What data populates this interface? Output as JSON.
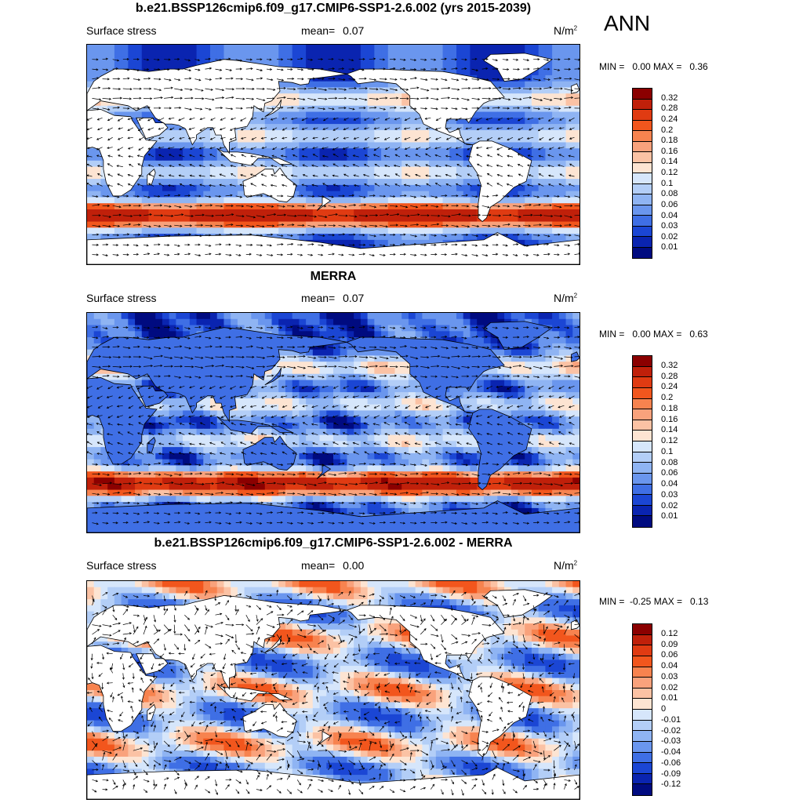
{
  "season": "ANN",
  "panels": [
    {
      "title": "b.e21.BSSP126cmip6.f09_g17.CMIP6-SSP1-2.6.002 (yrs 2015-2039)",
      "variable": "Surface stress",
      "mean_label": "mean=",
      "mean_value": "0.07",
      "units_base": "N/m",
      "units_exp": "2",
      "stats": "MIN =   0.00 MAX =   0.36",
      "colorbar_labels": [
        "0.32",
        "0.28",
        "0.24",
        "0.2",
        "0.18",
        "0.16",
        "0.14",
        "0.12",
        "0.1",
        "0.08",
        "0.06",
        "0.04",
        "0.03",
        "0.02",
        "0.01"
      ],
      "colorbar_colors": [
        "#8b0000",
        "#c0200a",
        "#e03b12",
        "#f2561d",
        "#f7834f",
        "#f9a27c",
        "#fbc2a4",
        "#fde4d2",
        "#d6e6fb",
        "#b3cef7",
        "#8fb4f3",
        "#6a96ee",
        "#3f6fe5",
        "#1b46d4",
        "#0a24b0",
        "#000b80"
      ],
      "field": "model"
    },
    {
      "title": "MERRA",
      "variable": "Surface stress",
      "mean_label": "mean=",
      "mean_value": "0.07",
      "units_base": "N/m",
      "units_exp": "2",
      "stats": "MIN =   0.00 MAX =   0.63",
      "colorbar_labels": [
        "0.32",
        "0.28",
        "0.24",
        "0.2",
        "0.18",
        "0.16",
        "0.14",
        "0.12",
        "0.1",
        "0.08",
        "0.06",
        "0.04",
        "0.03",
        "0.02",
        "0.01"
      ],
      "colorbar_colors": [
        "#8b0000",
        "#c0200a",
        "#e03b12",
        "#f2561d",
        "#f7834f",
        "#f9a27c",
        "#fbc2a4",
        "#fde4d2",
        "#d6e6fb",
        "#b3cef7",
        "#8fb4f3",
        "#6a96ee",
        "#3f6fe5",
        "#1b46d4",
        "#0a24b0",
        "#000b80"
      ],
      "field": "obs"
    },
    {
      "title": "b.e21.BSSP126cmip6.f09_g17.CMIP6-SSP1-2.6.002 - MERRA",
      "variable": "Surface stress",
      "mean_label": "mean=",
      "mean_value": "0.00",
      "units_base": "N/m",
      "units_exp": "2",
      "stats": "MIN =  -0.25 MAX =   0.13",
      "colorbar_labels": [
        "0.12",
        "0.09",
        "0.06",
        "0.04",
        "0.03",
        "0.02",
        "0.01",
        "0",
        "-0.01",
        "-0.02",
        "-0.03",
        "-0.04",
        "-0.06",
        "-0.09",
        "-0.12"
      ],
      "colorbar_colors": [
        "#8b0000",
        "#c0200a",
        "#e03b12",
        "#f2561d",
        "#f7834f",
        "#f9a27c",
        "#fbc2a4",
        "#fde4d2",
        "#d6e6fb",
        "#b3cef7",
        "#8fb4f3",
        "#6a96ee",
        "#3f6fe5",
        "#1b46d4",
        "#0a24b0",
        "#000b80"
      ],
      "field": "diff"
    }
  ]
}
